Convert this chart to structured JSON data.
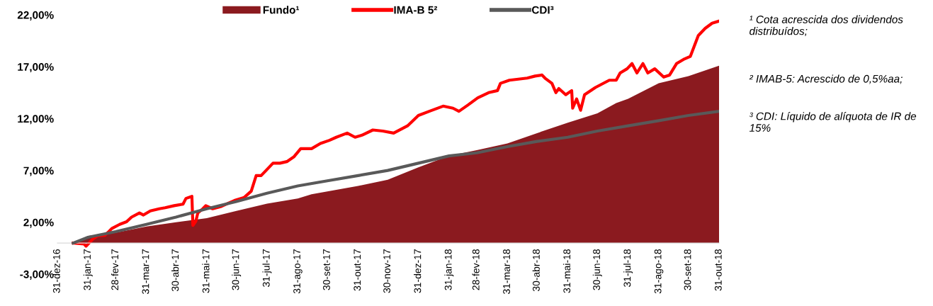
{
  "chart_data": {
    "type": "line",
    "xlim": [
      "2016-12-31",
      "2018-10-31"
    ],
    "xticks": [
      {
        "value": "2016-12-31",
        "label": "31-dez-16"
      },
      {
        "value": "2017-01-31",
        "label": "31-jan-17"
      },
      {
        "value": "2017-02-28",
        "label": "28-fev-17"
      },
      {
        "value": "2017-03-31",
        "label": "31-mar-17"
      },
      {
        "value": "2017-04-30",
        "label": "30-abr-17"
      },
      {
        "value": "2017-05-31",
        "label": "31-mai-17"
      },
      {
        "value": "2017-06-30",
        "label": "30-jun-17"
      },
      {
        "value": "2017-07-31",
        "label": "31-jul-17"
      },
      {
        "value": "2017-08-31",
        "label": "31-ago-17"
      },
      {
        "value": "2017-09-30",
        "label": "30-set-17"
      },
      {
        "value": "2017-10-31",
        "label": "31-out-17"
      },
      {
        "value": "2017-11-30",
        "label": "30-nov-17"
      },
      {
        "value": "2017-12-31",
        "label": "31-dez-17"
      },
      {
        "value": "2018-01-31",
        "label": "31-jan-18"
      },
      {
        "value": "2018-02-28",
        "label": "28-fev-18"
      },
      {
        "value": "2018-03-31",
        "label": "31-mar-18"
      },
      {
        "value": "2018-04-30",
        "label": "30-abr-18"
      },
      {
        "value": "2018-05-31",
        "label": "31-mai-18"
      },
      {
        "value": "2018-06-30",
        "label": "30-jun-18"
      },
      {
        "value": "2018-07-31",
        "label": "31-jul-18"
      },
      {
        "value": "2018-08-31",
        "label": "31-ago-18"
      },
      {
        "value": "2018-09-30",
        "label": "30-set-18"
      },
      {
        "value": "2018-10-31",
        "label": "31-out-18"
      }
    ],
    "ylim": [
      -3,
      22
    ],
    "yticks": [
      {
        "value": -3,
        "label": "-3,00%"
      },
      {
        "value": 2,
        "label": "2,00%"
      },
      {
        "value": 7,
        "label": "7,00%"
      },
      {
        "value": 12,
        "label": "12,00%"
      },
      {
        "value": 17,
        "label": "17,00%"
      },
      {
        "value": 22,
        "label": "22,00%"
      }
    ],
    "grid": false,
    "legend": "top",
    "series": [
      {
        "name": "Fundo¹",
        "type": "area",
        "color": "#8b1a1f",
        "x": [
          "2017-01-16",
          "2017-01-31",
          "2017-02-28",
          "2017-03-31",
          "2017-04-30",
          "2017-05-31",
          "2017-06-30",
          "2017-07-31",
          "2017-08-31",
          "2017-09-14",
          "2017-10-31",
          "2017-11-30",
          "2017-12-31",
          "2018-01-31",
          "2018-02-28",
          "2018-03-31",
          "2018-04-30",
          "2018-05-31",
          "2018-06-30",
          "2018-07-19",
          "2018-07-31",
          "2018-08-31",
          "2018-09-30",
          "2018-10-31"
        ],
        "values": [
          0,
          0.68,
          1.0,
          1.6,
          2.0,
          2.4,
          3.1,
          3.8,
          4.3,
          4.7,
          5.5,
          6.1,
          7.3,
          8.4,
          8.95,
          9.6,
          10.6,
          11.6,
          12.5,
          13.5,
          13.9,
          15.4,
          16.1,
          17.1
        ]
      },
      {
        "name": "IMA-B 5²",
        "color": "#ff0000",
        "x": [
          "2017-01-16",
          "2017-01-27",
          "2017-01-29",
          "2017-02-05",
          "2017-02-10",
          "2017-02-17",
          "2017-02-21",
          "2017-02-24",
          "2017-03-04",
          "2017-03-11",
          "2017-03-16",
          "2017-03-24",
          "2017-03-28",
          "2017-04-04",
          "2017-04-13",
          "2017-04-19",
          "2017-04-28",
          "2017-05-07",
          "2017-05-10",
          "2017-05-16",
          "2017-05-17",
          "2017-05-20",
          "2017-05-22",
          "2017-05-27",
          "2017-05-30",
          "2017-06-06",
          "2017-06-14",
          "2017-06-21",
          "2017-06-28",
          "2017-07-08",
          "2017-07-15",
          "2017-07-20",
          "2017-07-25",
          "2017-07-30",
          "2017-08-06",
          "2017-08-13",
          "2017-08-20",
          "2017-08-27",
          "2017-09-03",
          "2017-09-14",
          "2017-09-23",
          "2017-10-02",
          "2017-10-09",
          "2017-10-20",
          "2017-10-28",
          "2017-11-04",
          "2017-11-15",
          "2017-11-25",
          "2017-12-06",
          "2017-12-20",
          "2017-12-31",
          "2018-01-11",
          "2018-01-25",
          "2018-02-04",
          "2018-02-10",
          "2018-02-19",
          "2018-03-01",
          "2018-03-12",
          "2018-03-21",
          "2018-03-24",
          "2018-04-02",
          "2018-04-20",
          "2018-04-28",
          "2018-05-05",
          "2018-05-08",
          "2018-05-15",
          "2018-05-19",
          "2018-05-22",
          "2018-05-29",
          "2018-06-04",
          "2018-06-05",
          "2018-06-09",
          "2018-06-13",
          "2018-06-17",
          "2018-06-28",
          "2018-07-12",
          "2018-07-19",
          "2018-07-23",
          "2018-07-30",
          "2018-08-04",
          "2018-08-09",
          "2018-08-15",
          "2018-08-20",
          "2018-08-27",
          "2018-09-05",
          "2018-09-11",
          "2018-09-18",
          "2018-09-25",
          "2018-10-02",
          "2018-10-10",
          "2018-10-17",
          "2018-10-24",
          "2018-10-31"
        ],
        "values": [
          0,
          -0.1,
          -0.3,
          0.4,
          0.7,
          0.75,
          1.1,
          1.4,
          1.8,
          2.05,
          2.5,
          2.9,
          2.7,
          3.1,
          3.3,
          3.4,
          3.6,
          3.75,
          4.3,
          4.5,
          1.7,
          2.1,
          2.9,
          3.3,
          3.6,
          3.3,
          3.5,
          3.8,
          4.1,
          4.4,
          5.0,
          6.5,
          6.5,
          7.0,
          7.7,
          7.7,
          7.85,
          8.3,
          9.1,
          9.1,
          9.6,
          9.9,
          10.2,
          10.6,
          10.2,
          10.4,
          10.9,
          10.8,
          10.6,
          11.3,
          12.3,
          12.7,
          13.2,
          13.0,
          12.7,
          13.3,
          14.0,
          14.5,
          14.7,
          15.4,
          15.7,
          15.9,
          16.1,
          16.2,
          15.9,
          15.4,
          14.5,
          14.9,
          14.3,
          14.7,
          13.0,
          13.9,
          12.8,
          14.3,
          15.0,
          15.7,
          15.7,
          16.4,
          16.8,
          17.3,
          16.4,
          17.3,
          16.4,
          16.8,
          16.0,
          16.2,
          17.3,
          17.7,
          18.0,
          20.0,
          20.7,
          21.2,
          21.4
        ]
      },
      {
        "name": "CDI³",
        "color": "#595959",
        "x": [
          "2017-01-16",
          "2017-01-31",
          "2017-02-28",
          "2017-03-31",
          "2017-04-30",
          "2017-05-31",
          "2017-06-30",
          "2017-07-31",
          "2017-08-31",
          "2017-09-30",
          "2017-10-31",
          "2017-11-30",
          "2017-12-31",
          "2018-01-31",
          "2018-02-28",
          "2018-03-31",
          "2018-04-30",
          "2018-05-31",
          "2018-06-30",
          "2018-07-31",
          "2018-08-31",
          "2018-09-30",
          "2018-10-31"
        ],
        "values": [
          0,
          0.55,
          1.1,
          1.8,
          2.5,
          3.3,
          4.0,
          4.8,
          5.5,
          6.0,
          6.5,
          7.0,
          7.7,
          8.4,
          8.7,
          9.3,
          9.8,
          10.2,
          10.8,
          11.3,
          11.8,
          12.3,
          12.7
        ]
      }
    ],
    "annotations": [
      "¹ Cota acrescida dos dividendos distribuídos;",
      "² IMAB-5: Acrescido de 0,5%aa;",
      "³ CDI: Líquido de alíquota de IR de 15%"
    ]
  }
}
